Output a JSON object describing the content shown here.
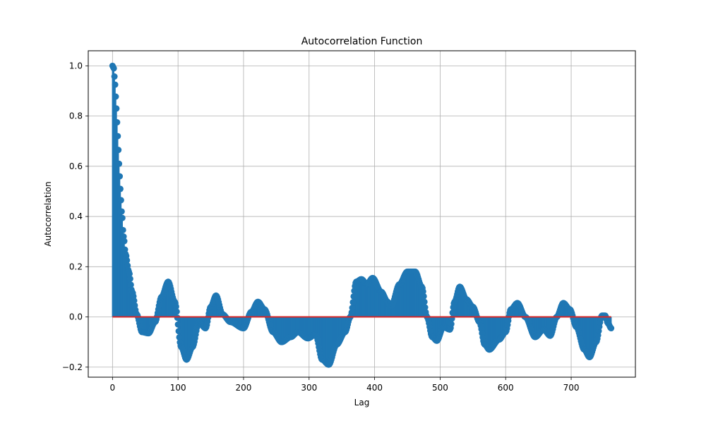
{
  "chart_data": {
    "type": "stem",
    "title": "Autocorrelation Function",
    "xlabel": "Lag",
    "ylabel": "Autocorrelation",
    "xlim": [
      -37,
      798
    ],
    "ylim": [
      -0.24,
      1.06
    ],
    "xticks": [
      0,
      100,
      200,
      300,
      400,
      500,
      600,
      700
    ],
    "yticks": [
      -0.2,
      0.0,
      0.2,
      0.4,
      0.6,
      0.8,
      1.0
    ],
    "xtick_labels": [
      "0",
      "100",
      "200",
      "300",
      "400",
      "500",
      "600",
      "700"
    ],
    "ytick_labels": [
      "−0.2",
      "0.0",
      "0.2",
      "0.4",
      "0.6",
      "0.8",
      "1.0"
    ],
    "grid": true,
    "lag_range": [
      0,
      761
    ],
    "baseline": 0.0,
    "marker_color": "#1f77b4",
    "baseline_color": "#d62728",
    "key_points": [
      {
        "lag": 0,
        "value": 1.0
      },
      {
        "lag": 2,
        "value": 0.99
      },
      {
        "lag": 4,
        "value": 0.925
      },
      {
        "lag": 6,
        "value": 0.83
      },
      {
        "lag": 8,
        "value": 0.72
      },
      {
        "lag": 10,
        "value": 0.61
      },
      {
        "lag": 12,
        "value": 0.51
      },
      {
        "lag": 14,
        "value": 0.42
      },
      {
        "lag": 17,
        "value": 0.32
      },
      {
        "lag": 20,
        "value": 0.25
      },
      {
        "lag": 25,
        "value": 0.18
      },
      {
        "lag": 30,
        "value": 0.1
      },
      {
        "lag": 37,
        "value": 0.01
      },
      {
        "lag": 45,
        "value": -0.06
      },
      {
        "lag": 55,
        "value": -0.065
      },
      {
        "lag": 65,
        "value": -0.02
      },
      {
        "lag": 75,
        "value": 0.08
      },
      {
        "lag": 85,
        "value": 0.14
      },
      {
        "lag": 95,
        "value": 0.06
      },
      {
        "lag": 105,
        "value": -0.12
      },
      {
        "lag": 113,
        "value": -0.17
      },
      {
        "lag": 122,
        "value": -0.12
      },
      {
        "lag": 132,
        "value": -0.02
      },
      {
        "lag": 142,
        "value": -0.045
      },
      {
        "lag": 150,
        "value": 0.04
      },
      {
        "lag": 158,
        "value": 0.085
      },
      {
        "lag": 168,
        "value": 0.01
      },
      {
        "lag": 180,
        "value": -0.02
      },
      {
        "lag": 200,
        "value": -0.045
      },
      {
        "lag": 212,
        "value": 0.02
      },
      {
        "lag": 222,
        "value": 0.06
      },
      {
        "lag": 232,
        "value": 0.03
      },
      {
        "lag": 245,
        "value": -0.06
      },
      {
        "lag": 258,
        "value": -0.1
      },
      {
        "lag": 272,
        "value": -0.08
      },
      {
        "lag": 283,
        "value": -0.06
      },
      {
        "lag": 298,
        "value": -0.085
      },
      {
        "lag": 310,
        "value": -0.07
      },
      {
        "lag": 320,
        "value": -0.17
      },
      {
        "lag": 330,
        "value": -0.19
      },
      {
        "lag": 342,
        "value": -0.11
      },
      {
        "lag": 355,
        "value": -0.06
      },
      {
        "lag": 363,
        "value": 0.0
      },
      {
        "lag": 372,
        "value": 0.14
      },
      {
        "lag": 380,
        "value": 0.15
      },
      {
        "lag": 388,
        "value": 0.13
      },
      {
        "lag": 397,
        "value": 0.155
      },
      {
        "lag": 410,
        "value": 0.1
      },
      {
        "lag": 420,
        "value": 0.06
      },
      {
        "lag": 425,
        "value": 0.04
      },
      {
        "lag": 438,
        "value": 0.13
      },
      {
        "lag": 450,
        "value": 0.18
      },
      {
        "lag": 462,
        "value": 0.18
      },
      {
        "lag": 472,
        "value": 0.12
      },
      {
        "lag": 480,
        "value": 0.0
      },
      {
        "lag": 488,
        "value": -0.08
      },
      {
        "lag": 495,
        "value": -0.095
      },
      {
        "lag": 505,
        "value": -0.04
      },
      {
        "lag": 515,
        "value": -0.05
      },
      {
        "lag": 522,
        "value": 0.06
      },
      {
        "lag": 530,
        "value": 0.12
      },
      {
        "lag": 540,
        "value": 0.07
      },
      {
        "lag": 550,
        "value": 0.04
      },
      {
        "lag": 560,
        "value": -0.02
      },
      {
        "lag": 568,
        "value": -0.11
      },
      {
        "lag": 575,
        "value": -0.13
      },
      {
        "lag": 590,
        "value": -0.09
      },
      {
        "lag": 600,
        "value": -0.06
      },
      {
        "lag": 608,
        "value": 0.03
      },
      {
        "lag": 618,
        "value": 0.055
      },
      {
        "lag": 630,
        "value": 0.0
      },
      {
        "lag": 645,
        "value": -0.08
      },
      {
        "lag": 658,
        "value": -0.05
      },
      {
        "lag": 668,
        "value": -0.075
      },
      {
        "lag": 678,
        "value": 0.0
      },
      {
        "lag": 688,
        "value": 0.055
      },
      {
        "lag": 698,
        "value": 0.03
      },
      {
        "lag": 708,
        "value": -0.04
      },
      {
        "lag": 720,
        "value": -0.13
      },
      {
        "lag": 728,
        "value": -0.16
      },
      {
        "lag": 738,
        "value": -0.1
      },
      {
        "lag": 747,
        "value": 0.005
      },
      {
        "lag": 752,
        "value": 0.005
      },
      {
        "lag": 756,
        "value": -0.025
      },
      {
        "lag": 761,
        "value": -0.045
      }
    ]
  }
}
